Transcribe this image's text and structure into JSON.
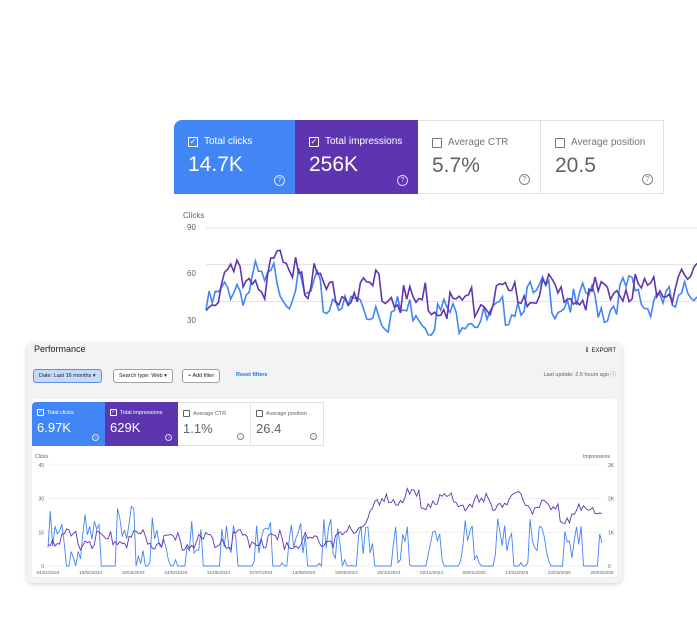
{
  "back": {
    "metrics": [
      {
        "label": "Total clicks",
        "value": "14.7K",
        "checked": true
      },
      {
        "label": "Total impressions",
        "value": "256K",
        "checked": true
      },
      {
        "label": "Average CTR",
        "value": "5.7%",
        "checked": false
      },
      {
        "label": "Average position",
        "value": "20.5",
        "checked": false
      }
    ],
    "chart_label": "Clicks",
    "y_ticks": [
      "90",
      "60",
      "30"
    ]
  },
  "front": {
    "title": "Performance",
    "export_label": "EXPORT",
    "filters": {
      "date": "Date: Last 16 months",
      "search_type": "Search type: Web",
      "add_filter": "Add filter",
      "reset": "Reset filters"
    },
    "last_update": "Last update: 2.5 hours ago",
    "metrics": [
      {
        "label": "Total clicks",
        "value": "6.97K",
        "checked": true
      },
      {
        "label": "Total impressions",
        "value": "629K",
        "checked": true
      },
      {
        "label": "Average CTR",
        "value": "1.1%",
        "checked": false
      },
      {
        "label": "Average position",
        "value": "26.4",
        "checked": false
      }
    ],
    "chart": {
      "left_axis_label": "Clicks",
      "right_axis_label": "Impressions",
      "left_ticks": [
        "45",
        "30",
        "15",
        "0"
      ],
      "right_ticks": [
        "3K",
        "2K",
        "1K",
        "0"
      ],
      "x_ticks": [
        "04/01/2024",
        "16/02/2024",
        "18/03/2024",
        "24/04/2024",
        "31/05/2024",
        "07/07/2024",
        "13/08/2024",
        "19/09/2024",
        "26/10/2024",
        "02/12/2024",
        "08/01/2025",
        "14/02/2025",
        "23/03/2025",
        "29/04/2025"
      ]
    }
  },
  "colors": {
    "clicks": "#4285f4",
    "impressions": "#5e35b1",
    "accent": "#1a73e8"
  },
  "chart_data": [
    {
      "type": "line",
      "title": "",
      "ylabel": "Clicks",
      "ylim": [
        0,
        90
      ],
      "series": [
        {
          "name": "Total clicks",
          "values": [
            30,
            38,
            45,
            52,
            42,
            58,
            48,
            62,
            40,
            55,
            36,
            50,
            30,
            45,
            28,
            40,
            25,
            35,
            22,
            30,
            28,
            34,
            20,
            26,
            30,
            22,
            28,
            24,
            20,
            25,
            30,
            36,
            42,
            38,
            48,
            34,
            40,
            30,
            44,
            36,
            28,
            40,
            48,
            42,
            32,
            46,
            38,
            30,
            44,
            50
          ]
        },
        {
          "name": "Total impressions",
          "values": [
            35,
            45,
            50,
            58,
            55,
            62,
            50,
            72,
            62,
            75,
            52,
            55,
            46,
            50,
            42,
            48,
            40,
            55,
            38,
            43,
            36,
            34,
            40,
            32,
            35,
            34,
            38,
            33,
            36,
            38,
            40,
            44,
            42,
            46,
            48,
            40,
            45,
            50,
            42,
            44,
            38,
            46,
            50,
            48,
            44,
            50,
            46,
            52,
            48,
            55
          ]
        }
      ]
    },
    {
      "type": "line",
      "title": "",
      "xlabel": "",
      "ylabel": "Clicks",
      "ylim": [
        0,
        45
      ],
      "y2label": "Impressions",
      "y2lim": [
        0,
        3000
      ],
      "x": [
        "04/01/2024",
        "16/02/2024",
        "18/03/2024",
        "24/04/2024",
        "31/05/2024",
        "07/07/2024",
        "13/08/2024",
        "19/09/2024",
        "26/10/2024",
        "02/12/2024",
        "08/01/2025",
        "14/02/2025",
        "23/03/2025",
        "29/04/2025"
      ],
      "series": [
        {
          "name": "Total clicks",
          "axis": "left",
          "values": [
            17,
            15,
            18,
            14,
            15,
            12,
            11,
            13,
            10,
            11,
            12,
            13,
            11,
            12
          ]
        },
        {
          "name": "Total impressions",
          "axis": "right",
          "values": [
            1000,
            900,
            950,
            850,
            950,
            950,
            900,
            1000,
            2200,
            2100,
            2000,
            2100,
            1700,
            1800
          ]
        }
      ]
    }
  ]
}
